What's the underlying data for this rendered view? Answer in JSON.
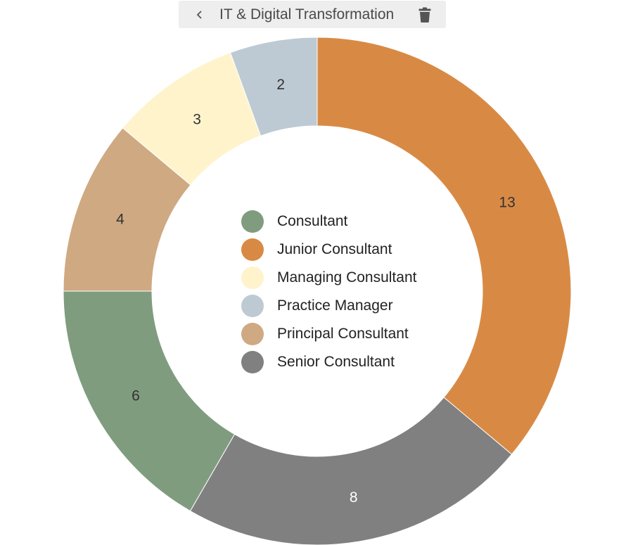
{
  "header": {
    "title": "IT & Digital Transformation",
    "back_icon": "chevron-left-icon",
    "delete_icon": "trash-icon"
  },
  "chart_data": {
    "type": "pie",
    "variant": "donut",
    "title": "IT & Digital Transformation",
    "legend_position": "center",
    "categories": [
      "Consultant",
      "Junior Consultant",
      "Managing Consultant",
      "Practice Manager",
      "Principal Consultant",
      "Senior Consultant"
    ],
    "values": [
      6,
      13,
      3,
      2,
      4,
      8
    ],
    "colors": [
      "#809c7f",
      "#d88a45",
      "#fff3cc",
      "#bdcad4",
      "#cfa982",
      "#808080"
    ],
    "label_colors": [
      "#333333",
      "#333333",
      "#333333",
      "#333333",
      "#333333",
      "#ffffff"
    ],
    "slice_order": [
      1,
      5,
      0,
      4,
      2,
      3
    ]
  }
}
